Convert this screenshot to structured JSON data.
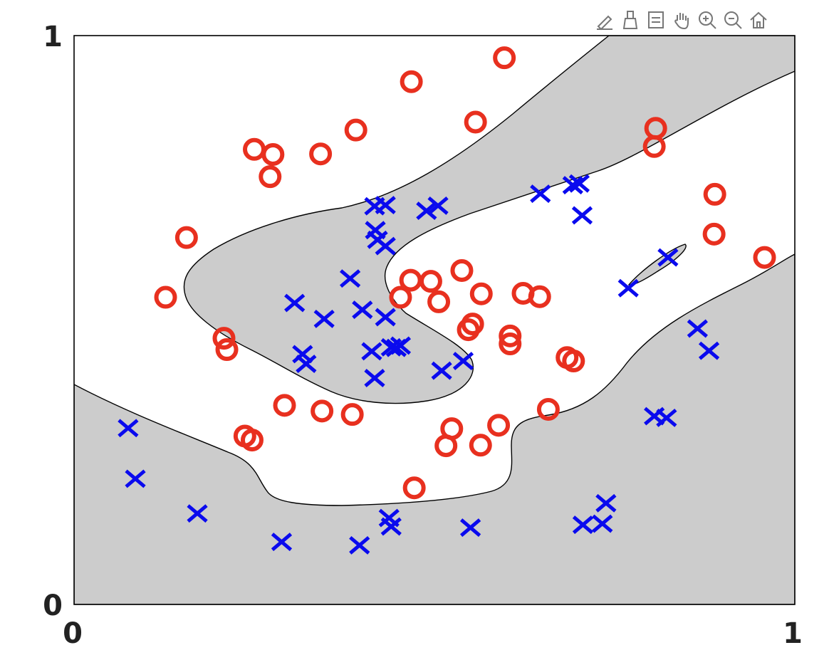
{
  "toolbar": {
    "tools": [
      {
        "name": "edit-icon"
      },
      {
        "name": "brush-icon"
      },
      {
        "name": "legend-icon"
      },
      {
        "name": "pan-hand-icon"
      },
      {
        "name": "zoom-in-icon"
      },
      {
        "name": "zoom-out-icon"
      },
      {
        "name": "home-icon"
      }
    ]
  },
  "colors": {
    "class_o": "#e8301f",
    "class_x": "#0a0aee",
    "region": "#cccccc",
    "boundary": "#000000"
  },
  "chart_data": {
    "type": "scatter",
    "xlim": [
      0,
      1
    ],
    "ylim": [
      0,
      1
    ],
    "xticks": [
      "0",
      "1"
    ],
    "yticks": [
      "0",
      "1"
    ],
    "grid": false,
    "legend": "none",
    "series": [
      {
        "marker": "o",
        "color": "#e8301f",
        "points": [
          [
            0.597,
            0.961
          ],
          [
            0.468,
            0.919
          ],
          [
            0.557,
            0.848
          ],
          [
            0.391,
            0.834
          ],
          [
            0.25,
            0.8
          ],
          [
            0.276,
            0.791
          ],
          [
            0.342,
            0.792
          ],
          [
            0.272,
            0.752
          ],
          [
            0.807,
            0.837
          ],
          [
            0.805,
            0.805
          ],
          [
            0.889,
            0.721
          ],
          [
            0.888,
            0.651
          ],
          [
            0.958,
            0.61
          ],
          [
            0.156,
            0.645
          ],
          [
            0.127,
            0.54
          ],
          [
            0.208,
            0.468
          ],
          [
            0.212,
            0.448
          ],
          [
            0.467,
            0.57
          ],
          [
            0.453,
            0.54
          ],
          [
            0.495,
            0.568
          ],
          [
            0.538,
            0.587
          ],
          [
            0.565,
            0.546
          ],
          [
            0.506,
            0.532
          ],
          [
            0.623,
            0.547
          ],
          [
            0.646,
            0.541
          ],
          [
            0.553,
            0.493
          ],
          [
            0.547,
            0.483
          ],
          [
            0.605,
            0.472
          ],
          [
            0.605,
            0.458
          ],
          [
            0.684,
            0.434
          ],
          [
            0.693,
            0.428
          ],
          [
            0.292,
            0.35
          ],
          [
            0.344,
            0.34
          ],
          [
            0.386,
            0.334
          ],
          [
            0.658,
            0.343
          ],
          [
            0.524,
            0.309
          ],
          [
            0.589,
            0.315
          ],
          [
            0.516,
            0.279
          ],
          [
            0.564,
            0.28
          ],
          [
            0.237,
            0.296
          ],
          [
            0.247,
            0.289
          ],
          [
            0.472,
            0.205
          ]
        ]
      },
      {
        "marker": "x",
        "color": "#0a0aee",
        "points": [
          [
            0.417,
            0.7
          ],
          [
            0.432,
            0.702
          ],
          [
            0.489,
            0.692
          ],
          [
            0.505,
            0.701
          ],
          [
            0.647,
            0.722
          ],
          [
            0.692,
            0.737
          ],
          [
            0.701,
            0.74
          ],
          [
            0.705,
            0.684
          ],
          [
            0.418,
            0.658
          ],
          [
            0.421,
            0.641
          ],
          [
            0.432,
            0.63
          ],
          [
            0.383,
            0.573
          ],
          [
            0.306,
            0.53
          ],
          [
            0.347,
            0.502
          ],
          [
            0.4,
            0.518
          ],
          [
            0.432,
            0.505
          ],
          [
            0.44,
            0.452
          ],
          [
            0.447,
            0.451
          ],
          [
            0.413,
            0.445
          ],
          [
            0.453,
            0.455
          ],
          [
            0.417,
            0.398
          ],
          [
            0.51,
            0.411
          ],
          [
            0.54,
            0.428
          ],
          [
            0.317,
            0.44
          ],
          [
            0.322,
            0.423
          ],
          [
            0.769,
            0.556
          ],
          [
            0.824,
            0.61
          ],
          [
            0.865,
            0.485
          ],
          [
            0.881,
            0.446
          ],
          [
            0.805,
            0.331
          ],
          [
            0.822,
            0.328
          ],
          [
            0.075,
            0.31
          ],
          [
            0.085,
            0.221
          ],
          [
            0.171,
            0.16
          ],
          [
            0.288,
            0.11
          ],
          [
            0.396,
            0.104
          ],
          [
            0.437,
            0.152
          ],
          [
            0.44,
            0.137
          ],
          [
            0.55,
            0.135
          ],
          [
            0.706,
            0.14
          ],
          [
            0.733,
            0.142
          ],
          [
            0.738,
            0.178
          ]
        ]
      }
    ]
  }
}
